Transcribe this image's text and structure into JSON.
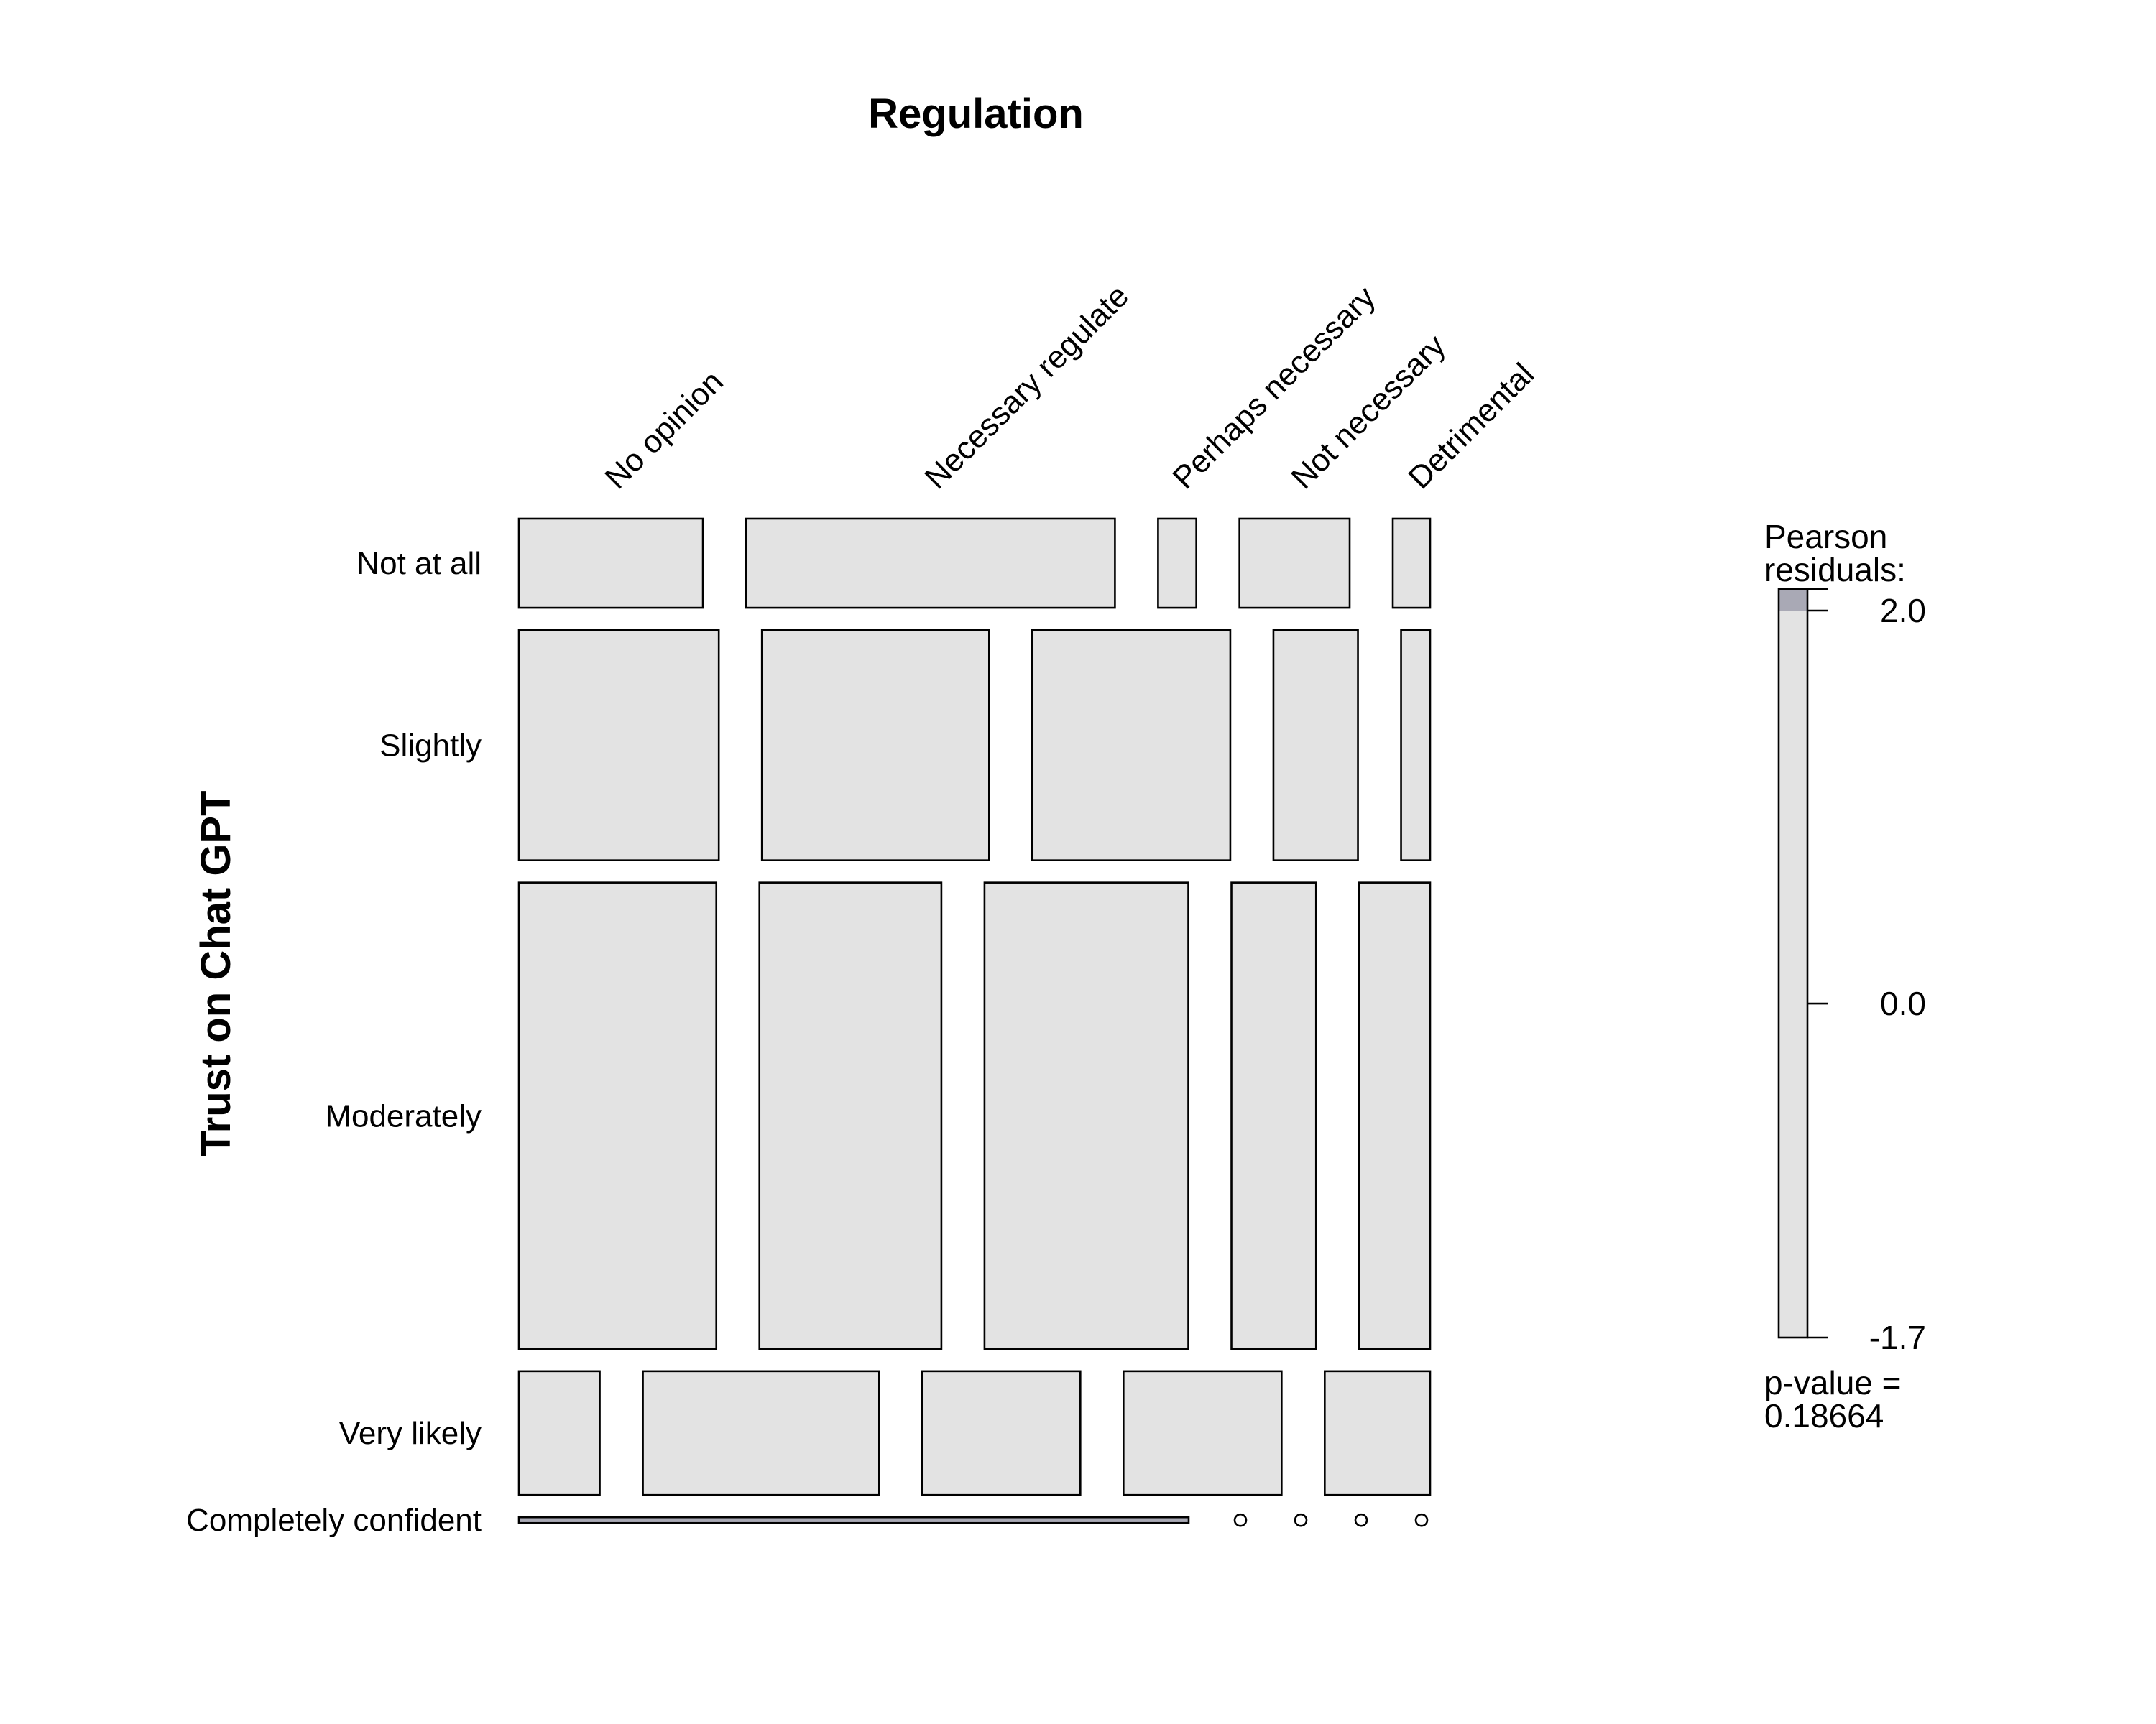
{
  "chart_data": {
    "type": "mosaic",
    "title": "Regulation",
    "ylabel": "Trust on Chat GPT",
    "columns": [
      "No opinion",
      "Necessary regulate",
      "Perhaps necessary",
      "Not necessary",
      "Detrimental"
    ],
    "rows": [
      "Not at all",
      "Slightly",
      "Moderately",
      "Very likely",
      "Completely confident"
    ],
    "row_proportions": [
      0.108,
      0.279,
      0.565,
      0.15,
      0.007
    ],
    "cell_widths": [
      [
        0.202,
        0.405,
        0.042,
        0.121,
        0.041
      ],
      [
        0.22,
        0.25,
        0.218,
        0.093,
        0.032
      ],
      [
        0.217,
        0.2,
        0.224,
        0.093,
        0.078
      ],
      [
        0.089,
        0.26,
        0.174,
        0.174,
        0.116
      ],
      [
        0.808,
        0.0,
        0.0,
        0.0,
        0.0
      ]
    ],
    "cell_shading": [
      [
        "neutral",
        "neutral",
        "neutral",
        "neutral",
        "neutral"
      ],
      [
        "neutral",
        "neutral",
        "neutral",
        "neutral",
        "neutral"
      ],
      [
        "neutral",
        "neutral",
        "neutral",
        "neutral",
        "neutral"
      ],
      [
        "neutral",
        "neutral",
        "neutral",
        "neutral",
        "neutral"
      ],
      [
        "positive",
        "empty",
        "empty",
        "empty",
        "empty"
      ]
    ],
    "legend": {
      "title_line1": "Pearson",
      "title_line2": "residuals:",
      "min": -1.7,
      "max": 2.0,
      "shade_threshold": 2.0,
      "ticks": [
        "2.0",
        "0.0",
        "-1.7"
      ],
      "tick_values": [
        2.0,
        0.0,
        -1.7
      ],
      "pvalue_line1": "p-value =",
      "pvalue_line2": "0.18664",
      "placement": "right"
    },
    "colors": {
      "neutral": "#e3e3e3",
      "positive": "#a9a9b5",
      "stroke": "#000000"
    }
  }
}
